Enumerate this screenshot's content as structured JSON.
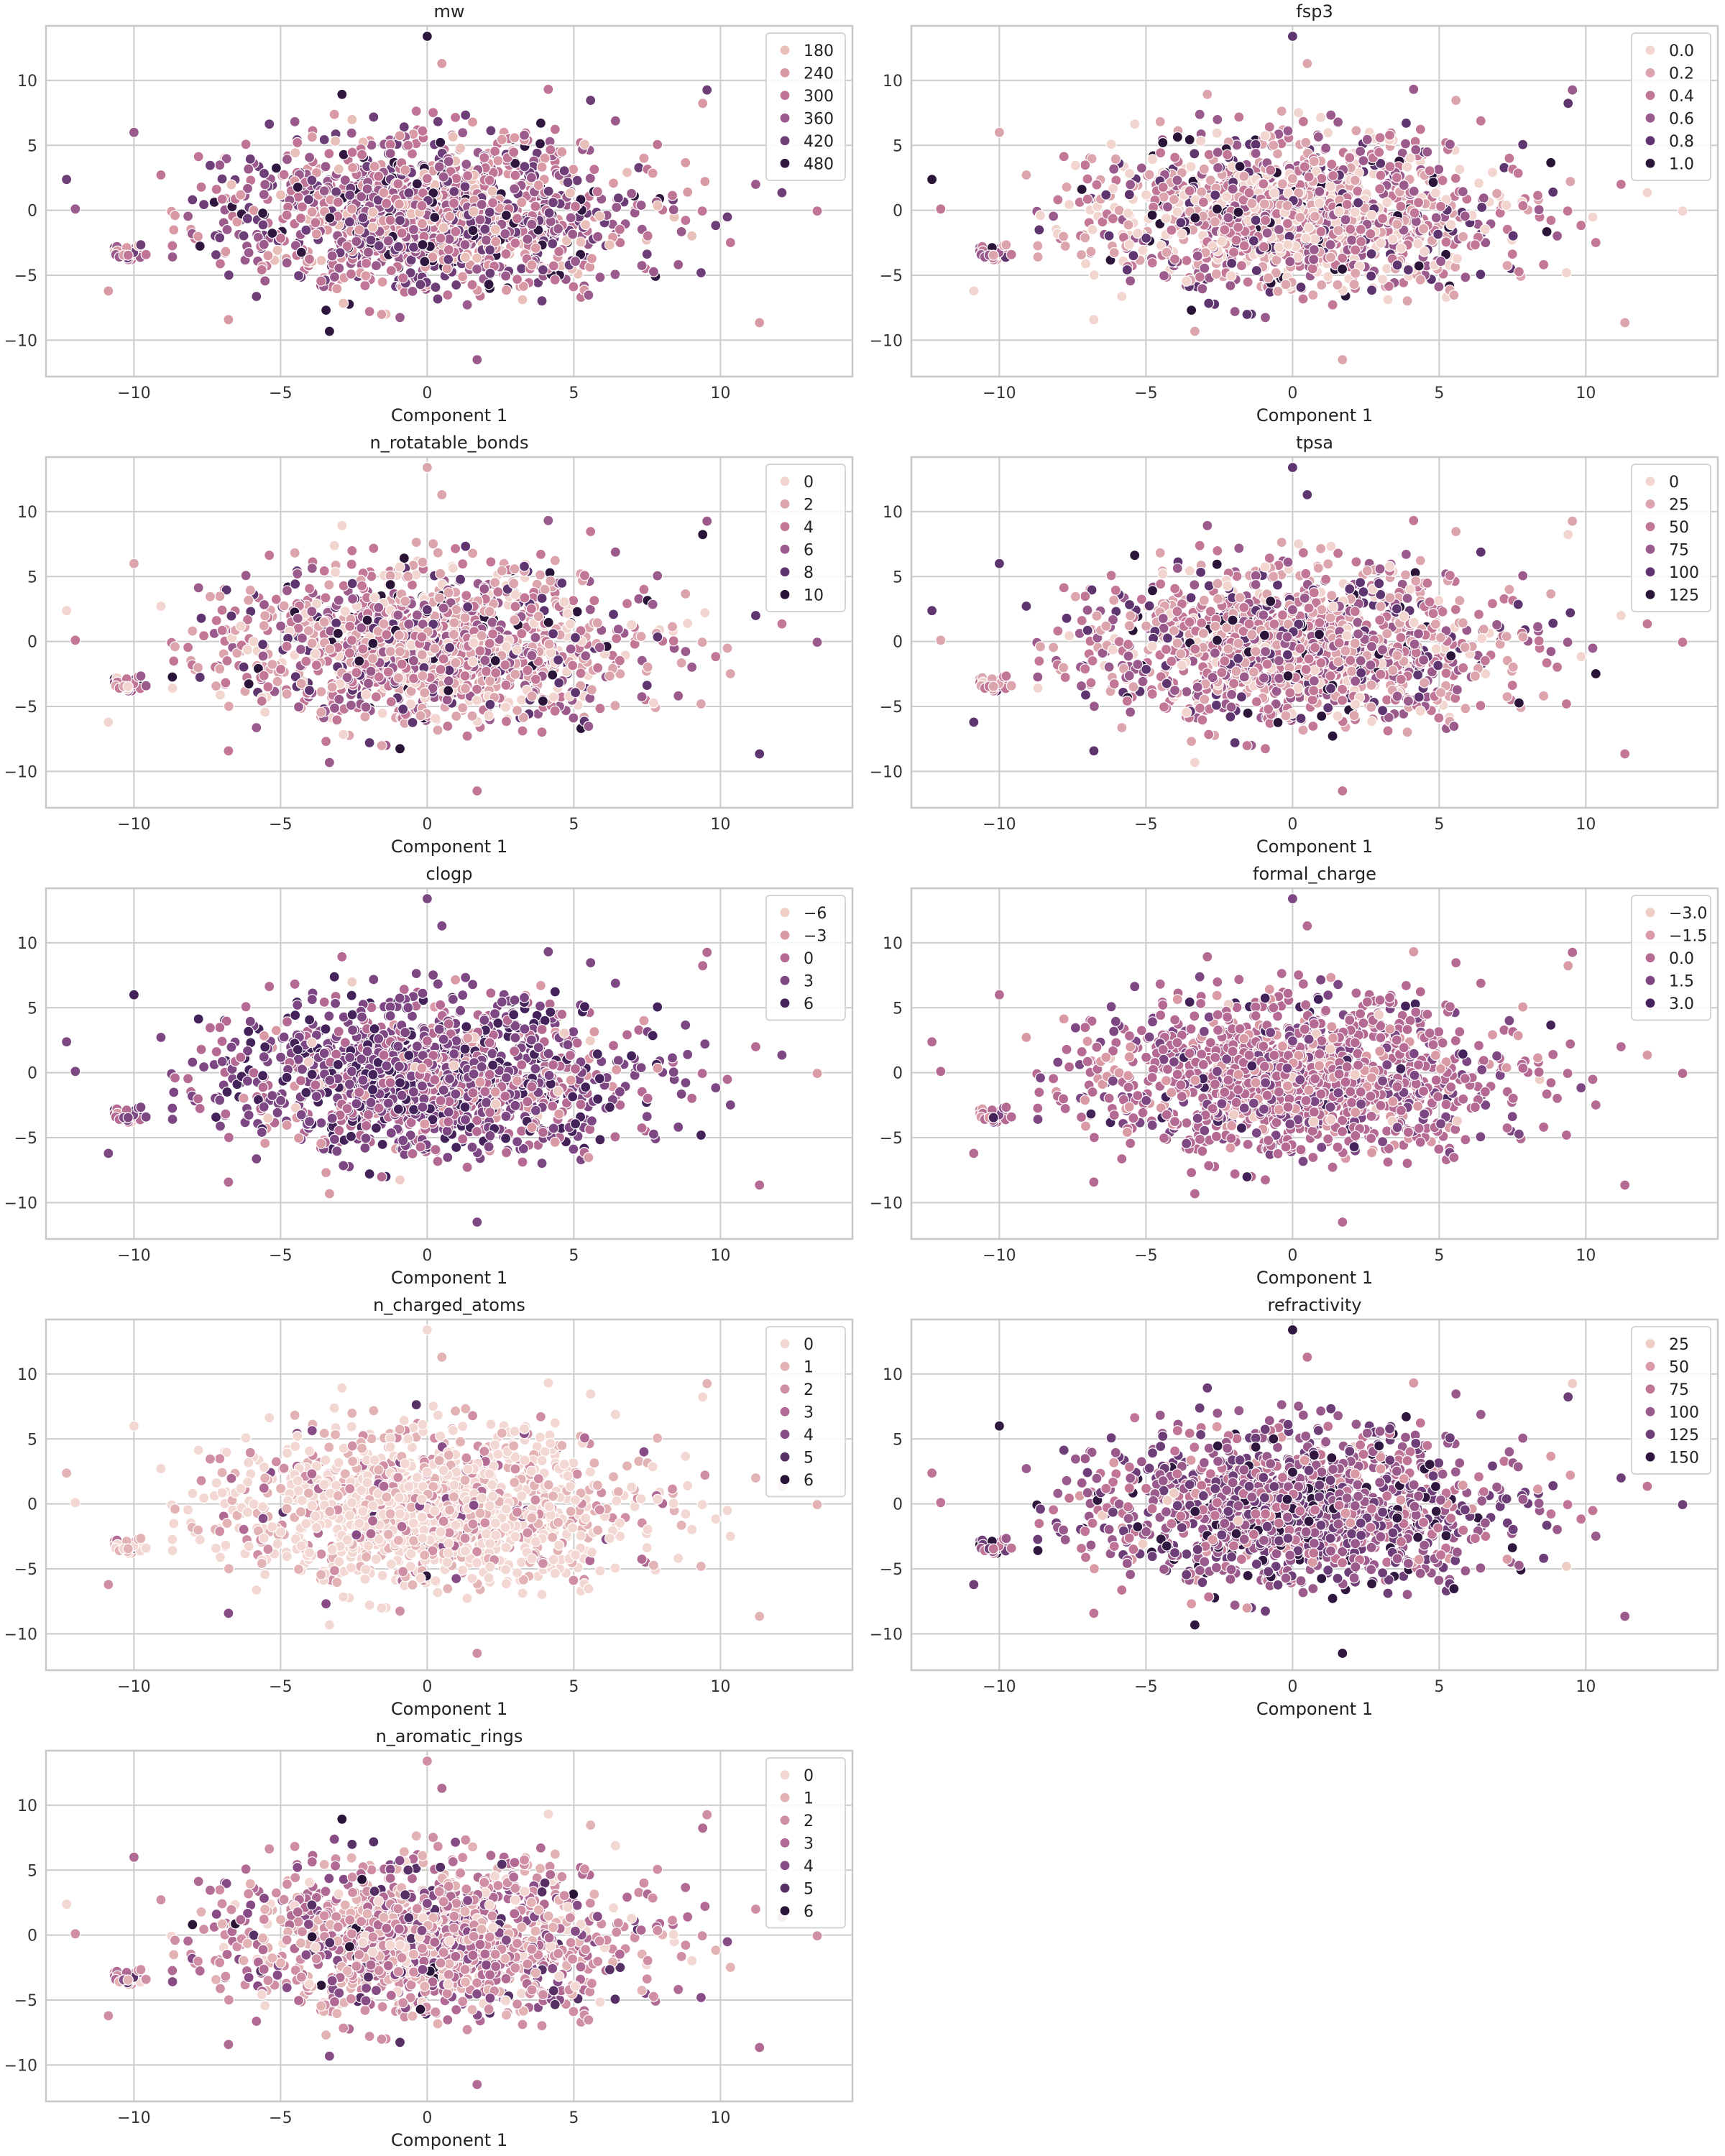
{
  "chart_data": [
    {
      "type": "scatter",
      "title": "mw",
      "xlabel": "Component 1",
      "xlim": [
        -13,
        14.5
      ],
      "ylim": [
        -12.8,
        14.2
      ],
      "xticks": [
        -10,
        -5,
        0,
        5,
        10
      ],
      "yticks": [
        -10,
        -5,
        0,
        5,
        10
      ],
      "grid": true,
      "legend_position": "top-right",
      "legend": [
        "180",
        "240",
        "300",
        "360",
        "420",
        "480"
      ],
      "colors": [
        "#e9bfb9",
        "#d99aa6",
        "#c07597",
        "#9a5b8c",
        "#6d3e77",
        "#30173f"
      ],
      "weights": [
        0.06,
        0.16,
        0.26,
        0.26,
        0.18,
        0.08
      ],
      "point_count": 1500
    },
    {
      "type": "scatter",
      "title": "fsp3",
      "xlabel": "Component 1",
      "xlim": [
        -13,
        14.5
      ],
      "ylim": [
        -12.8,
        14.2
      ],
      "xticks": [
        -10,
        -5,
        0,
        5,
        10
      ],
      "yticks": [
        -10,
        -5,
        0,
        5,
        10
      ],
      "grid": true,
      "legend_position": "top-right",
      "legend": [
        "0.0",
        "0.2",
        "0.4",
        "0.6",
        "0.8",
        "1.0"
      ],
      "colors": [
        "#f2d5cf",
        "#dca4ac",
        "#c27797",
        "#9b5a8c",
        "#5f3570",
        "#2a1538"
      ],
      "weights": [
        0.22,
        0.25,
        0.22,
        0.16,
        0.1,
        0.05
      ],
      "point_count": 1500
    },
    {
      "type": "scatter",
      "title": "n_rotatable_bonds",
      "xlabel": "Component 1",
      "xlim": [
        -13,
        14.5
      ],
      "ylim": [
        -12.8,
        14.2
      ],
      "xticks": [
        -10,
        -5,
        0,
        5,
        10
      ],
      "yticks": [
        -10,
        -5,
        0,
        5,
        10
      ],
      "grid": true,
      "legend_position": "top-right",
      "legend": [
        "0",
        "2",
        "4",
        "6",
        "8",
        "10"
      ],
      "colors": [
        "#f2d5cf",
        "#dca4ac",
        "#c27797",
        "#9b5a8c",
        "#5f3570",
        "#2a1538"
      ],
      "weights": [
        0.14,
        0.26,
        0.27,
        0.19,
        0.1,
        0.04
      ],
      "point_count": 1500
    },
    {
      "type": "scatter",
      "title": "tpsa",
      "xlabel": "Component 1",
      "xlim": [
        -13,
        14.5
      ],
      "ylim": [
        -12.8,
        14.2
      ],
      "xticks": [
        -10,
        -5,
        0,
        5,
        10
      ],
      "yticks": [
        -10,
        -5,
        0,
        5,
        10
      ],
      "grid": true,
      "legend_position": "top-right",
      "legend": [
        "0",
        "25",
        "50",
        "75",
        "100",
        "125"
      ],
      "colors": [
        "#f2d5cf",
        "#dca4ac",
        "#c27797",
        "#9b5a8c",
        "#5f3570",
        "#2a1538"
      ],
      "weights": [
        0.1,
        0.22,
        0.27,
        0.22,
        0.13,
        0.06
      ],
      "point_count": 1500
    },
    {
      "type": "scatter",
      "title": "clogp",
      "xlabel": "Component 1",
      "xlim": [
        -13,
        14.5
      ],
      "ylim": [
        -12.8,
        14.2
      ],
      "xticks": [
        -10,
        -5,
        0,
        5,
        10
      ],
      "yticks": [
        -10,
        -5,
        0,
        5,
        10
      ],
      "grid": true,
      "legend_position": "top-right",
      "legend": [
        "−6",
        "−3",
        "0",
        "3",
        "6"
      ],
      "colors": [
        "#efcdc7",
        "#d99aa6",
        "#b46a93",
        "#7c4782",
        "#43235a"
      ],
      "weights": [
        0.02,
        0.08,
        0.28,
        0.42,
        0.2
      ],
      "point_count": 1500
    },
    {
      "type": "scatter",
      "title": "formal_charge",
      "xlabel": "Component 1",
      "xlim": [
        -13,
        14.5
      ],
      "ylim": [
        -12.8,
        14.2
      ],
      "xticks": [
        -10,
        -5,
        0,
        5,
        10
      ],
      "yticks": [
        -10,
        -5,
        0,
        5,
        10
      ],
      "grid": true,
      "legend_position": "top-right",
      "legend": [
        "−3.0",
        "−1.5",
        "0.0",
        "1.5",
        "3.0"
      ],
      "colors": [
        "#efcdc7",
        "#d99aa6",
        "#b46a93",
        "#7c4782",
        "#43235a"
      ],
      "weights": [
        0.02,
        0.15,
        0.62,
        0.18,
        0.03
      ],
      "point_count": 1500
    },
    {
      "type": "scatter",
      "title": "n_charged_atoms",
      "xlabel": "Component 1",
      "xlim": [
        -13,
        14.5
      ],
      "ylim": [
        -12.8,
        14.2
      ],
      "xticks": [
        -10,
        -5,
        0,
        5,
        10
      ],
      "yticks": [
        -10,
        -5,
        0,
        5,
        10
      ],
      "grid": true,
      "legend_position": "top-right",
      "legend": [
        "0",
        "1",
        "2",
        "3",
        "4",
        "5",
        "6"
      ],
      "colors": [
        "#f3d7d2",
        "#e2b2b4",
        "#cf8ea4",
        "#b06a93",
        "#874c86",
        "#573065",
        "#2a1538"
      ],
      "weights": [
        0.58,
        0.24,
        0.11,
        0.04,
        0.02,
        0.007,
        0.003
      ],
      "point_count": 1500
    },
    {
      "type": "scatter",
      "title": "refractivity",
      "xlabel": "Component 1",
      "xlim": [
        -13,
        14.5
      ],
      "ylim": [
        -12.8,
        14.2
      ],
      "xticks": [
        -10,
        -5,
        0,
        5,
        10
      ],
      "yticks": [
        -10,
        -5,
        0,
        5,
        10
      ],
      "grid": true,
      "legend_position": "top-right",
      "legend": [
        "25",
        "50",
        "75",
        "100",
        "125",
        "150"
      ],
      "colors": [
        "#efcdc7",
        "#d99aa6",
        "#c07597",
        "#9a5b8c",
        "#6d3e77",
        "#30173f"
      ],
      "weights": [
        0.02,
        0.06,
        0.2,
        0.34,
        0.28,
        0.1
      ],
      "point_count": 1500
    },
    {
      "type": "scatter",
      "title": "n_aromatic_rings",
      "xlabel": "Component 1",
      "xlim": [
        -13,
        14.5
      ],
      "ylim": [
        -12.8,
        14.2
      ],
      "xticks": [
        -10,
        -5,
        0,
        5,
        10
      ],
      "yticks": [
        -10,
        -5,
        0,
        5,
        10
      ],
      "grid": true,
      "legend_position": "top-right",
      "legend": [
        "0",
        "1",
        "2",
        "3",
        "4",
        "5",
        "6"
      ],
      "colors": [
        "#f3d7d2",
        "#e2b2b4",
        "#cf8ea4",
        "#b06a93",
        "#874c86",
        "#573065",
        "#2a1538"
      ],
      "weights": [
        0.08,
        0.2,
        0.3,
        0.24,
        0.12,
        0.04,
        0.02
      ],
      "point_count": 1500
    }
  ]
}
